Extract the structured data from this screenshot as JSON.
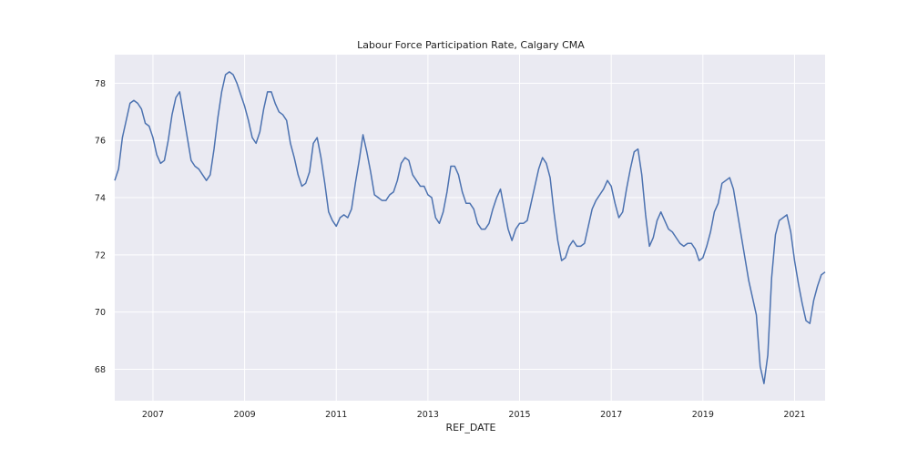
{
  "chart_data": {
    "type": "line",
    "title": "Labour Force Participation Rate, Calgary CMA",
    "xlabel": "REF_DATE",
    "ylabel": "",
    "x_tick_labels": [
      "2007",
      "2009",
      "2011",
      "2013",
      "2015",
      "2017",
      "2019",
      "2021"
    ],
    "y_tick_labels": [
      "68",
      "70",
      "72",
      "74",
      "76",
      "78"
    ],
    "xlim": [
      "2006-03",
      "2021-09"
    ],
    "ylim": [
      66.9,
      79.0
    ],
    "grid": true,
    "legend": "none",
    "series": [
      {
        "color": "#4c72b0",
        "x": [
          "2006-03",
          "2006-04",
          "2006-05",
          "2006-06",
          "2006-07",
          "2006-08",
          "2006-09",
          "2006-10",
          "2006-11",
          "2006-12",
          "2007-01",
          "2007-02",
          "2007-03",
          "2007-04",
          "2007-05",
          "2007-06",
          "2007-07",
          "2007-08",
          "2007-09",
          "2007-10",
          "2007-11",
          "2007-12",
          "2008-01",
          "2008-02",
          "2008-03",
          "2008-04",
          "2008-05",
          "2008-06",
          "2008-07",
          "2008-08",
          "2008-09",
          "2008-10",
          "2008-11",
          "2008-12",
          "2009-01",
          "2009-02",
          "2009-03",
          "2009-04",
          "2009-05",
          "2009-06",
          "2009-07",
          "2009-08",
          "2009-09",
          "2009-10",
          "2009-11",
          "2009-12",
          "2010-01",
          "2010-02",
          "2010-03",
          "2010-04",
          "2010-05",
          "2010-06",
          "2010-07",
          "2010-08",
          "2010-09",
          "2010-10",
          "2010-11",
          "2010-12",
          "2011-01",
          "2011-02",
          "2011-03",
          "2011-04",
          "2011-05",
          "2011-06",
          "2011-07",
          "2011-08",
          "2011-09",
          "2011-10",
          "2011-11",
          "2011-12",
          "2012-01",
          "2012-02",
          "2012-03",
          "2012-04",
          "2012-05",
          "2012-06",
          "2012-07",
          "2012-08",
          "2012-09",
          "2012-10",
          "2012-11",
          "2012-12",
          "2013-01",
          "2013-02",
          "2013-03",
          "2013-04",
          "2013-05",
          "2013-06",
          "2013-07",
          "2013-08",
          "2013-09",
          "2013-10",
          "2013-11",
          "2013-12",
          "2014-01",
          "2014-02",
          "2014-03",
          "2014-04",
          "2014-05",
          "2014-06",
          "2014-07",
          "2014-08",
          "2014-09",
          "2014-10",
          "2014-11",
          "2014-12",
          "2015-01",
          "2015-02",
          "2015-03",
          "2015-04",
          "2015-05",
          "2015-06",
          "2015-07",
          "2015-08",
          "2015-09",
          "2015-10",
          "2015-11",
          "2015-12",
          "2016-01",
          "2016-02",
          "2016-03",
          "2016-04",
          "2016-05",
          "2016-06",
          "2016-07",
          "2016-08",
          "2016-09",
          "2016-10",
          "2016-11",
          "2016-12",
          "2017-01",
          "2017-02",
          "2017-03",
          "2017-04",
          "2017-05",
          "2017-06",
          "2017-07",
          "2017-08",
          "2017-09",
          "2017-10",
          "2017-11",
          "2017-12",
          "2018-01",
          "2018-02",
          "2018-03",
          "2018-04",
          "2018-05",
          "2018-06",
          "2018-07",
          "2018-08",
          "2018-09",
          "2018-10",
          "2018-11",
          "2018-12",
          "2019-01",
          "2019-02",
          "2019-03",
          "2019-04",
          "2019-05",
          "2019-06",
          "2019-07",
          "2019-08",
          "2019-09",
          "2019-10",
          "2019-11",
          "2019-12",
          "2020-01",
          "2020-02",
          "2020-03",
          "2020-04",
          "2020-05",
          "2020-06",
          "2020-07",
          "2020-08",
          "2020-09",
          "2020-10",
          "2020-11",
          "2020-12",
          "2021-01",
          "2021-02",
          "2021-03",
          "2021-04",
          "2021-05",
          "2021-06",
          "2021-07",
          "2021-08",
          "2021-09"
        ],
        "values": [
          74.6,
          75.0,
          76.1,
          76.7,
          77.3,
          77.4,
          77.3,
          77.1,
          76.6,
          76.5,
          76.1,
          75.5,
          75.2,
          75.3,
          76.0,
          76.9,
          77.5,
          77.7,
          76.9,
          76.1,
          75.3,
          75.1,
          75.0,
          74.8,
          74.6,
          74.8,
          75.7,
          76.8,
          77.7,
          78.3,
          78.4,
          78.3,
          78.0,
          77.6,
          77.2,
          76.7,
          76.1,
          75.9,
          76.3,
          77.1,
          77.7,
          77.7,
          77.3,
          77.0,
          76.9,
          76.7,
          75.9,
          75.4,
          74.8,
          74.4,
          74.5,
          74.9,
          75.9,
          76.1,
          75.4,
          74.5,
          73.5,
          73.2,
          73.0,
          73.3,
          73.4,
          73.3,
          73.6,
          74.5,
          75.3,
          76.2,
          75.6,
          74.9,
          74.1,
          74.0,
          73.9,
          73.9,
          74.1,
          74.2,
          74.6,
          75.2,
          75.4,
          75.3,
          74.8,
          74.6,
          74.4,
          74.4,
          74.1,
          74.0,
          73.3,
          73.1,
          73.5,
          74.2,
          75.1,
          75.1,
          74.8,
          74.2,
          73.8,
          73.8,
          73.6,
          73.1,
          72.9,
          72.9,
          73.1,
          73.6,
          74.0,
          74.3,
          73.6,
          72.9,
          72.5,
          72.9,
          73.1,
          73.1,
          73.2,
          73.8,
          74.4,
          75.0,
          75.4,
          75.2,
          74.7,
          73.5,
          72.5,
          71.8,
          71.9,
          72.3,
          72.5,
          72.3,
          72.3,
          72.4,
          73.0,
          73.6,
          73.9,
          74.1,
          74.3,
          74.6,
          74.4,
          73.8,
          73.3,
          73.5,
          74.3,
          75.0,
          75.6,
          75.7,
          74.8,
          73.4,
          72.3,
          72.6,
          73.2,
          73.5,
          73.2,
          72.9,
          72.8,
          72.6,
          72.4,
          72.3,
          72.4,
          72.4,
          72.2,
          71.8,
          71.9,
          72.3,
          72.8,
          73.5,
          73.8,
          74.5,
          74.6,
          74.7,
          74.3,
          73.5,
          72.7,
          71.9,
          71.1,
          70.5,
          69.9,
          68.1,
          67.5,
          68.5,
          71.2,
          72.7,
          73.2,
          73.3,
          73.4,
          72.8,
          71.8,
          71.0,
          70.3,
          69.7,
          69.6,
          70.4,
          70.9,
          71.3,
          71.4
        ]
      }
    ]
  }
}
